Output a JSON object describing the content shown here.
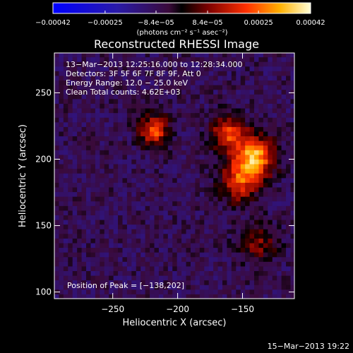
{
  "chart_data": {
    "type": "heatmap",
    "title": "Reconstructed RHESSI Image",
    "xlabel": "Heliocentric X (arcsec)",
    "ylabel": "Heliocentric Y (arcsec)",
    "xlim": [
      -295,
      -110
    ],
    "ylim": [
      95,
      280
    ],
    "x_ticks": [
      -250,
      -200,
      -150
    ],
    "y_ticks": [
      100,
      150,
      200,
      250
    ],
    "x_tick_labels": [
      "−250",
      "−200",
      "−150"
    ],
    "y_tick_labels": [
      "100",
      "150",
      "200",
      "250"
    ],
    "grid": false,
    "info_lines": [
      "13−Mar−2013 12:25:16.000 to 12:28:34.000",
      "Detectors: 3F 5F 6F 7F 8F 9F, Att 0",
      "Energy Range: 12.0 − 25.0 keV",
      "Clean     Total counts: 4.62E+03"
    ],
    "peak_label": "Position of Peak = [−138,202]",
    "peak": [
      -138,
      202
    ],
    "colorbar": {
      "range": [
        -0.00042,
        0.00042
      ],
      "ticks": [
        -0.00042,
        -0.00025,
        -8.4e-05,
        8.4e-05,
        0.00025,
        0.00042
      ],
      "tick_labels": [
        "−0.00042",
        "−0.00025",
        "−8.4e−05",
        "8.4e−05",
        "0.00025",
        "0.00042"
      ],
      "label": "(photons cm⁻² s⁻¹ asec⁻²)"
    },
    "sources": [
      {
        "x": -143,
        "y": 200,
        "sigma": 11,
        "amplitude": 0.00041
      },
      {
        "x": -163,
        "y": 218,
        "sigma": 9,
        "amplitude": 0.00028
      },
      {
        "x": -155,
        "y": 180,
        "sigma": 10,
        "amplitude": 0.00026
      },
      {
        "x": -220,
        "y": 220,
        "sigma": 8,
        "amplitude": 0.0003
      },
      {
        "x": -140,
        "y": 135,
        "sigma": 10,
        "amplitude": 0.00016
      }
    ],
    "background_level": -8e-05
  },
  "timestamp": "15−Mar−2013 19:22"
}
